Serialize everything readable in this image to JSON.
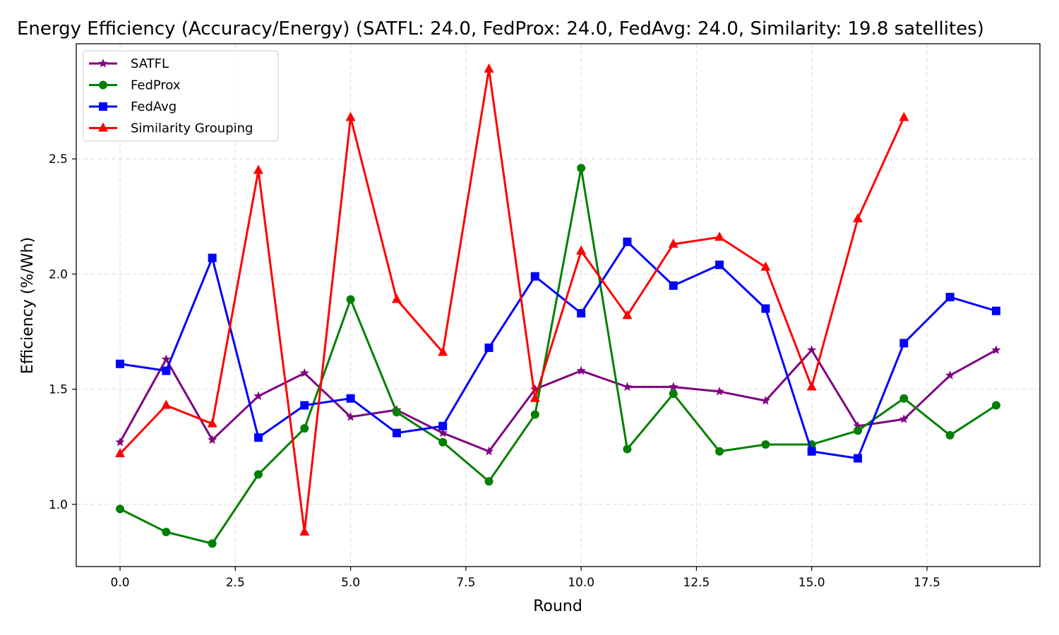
{
  "chart_data": {
    "type": "line",
    "title": "Energy Efficiency (Accuracy/Energy) (SATFL: 24.0, FedProx: 24.0, FedAvg: 24.0, Similarity: 19.8 satellites)",
    "xlabel": "Round",
    "ylabel": "Efficiency (%/Wh)",
    "xlim": [
      -0.95,
      19.95
    ],
    "ylim": [
      0.73,
      3.0
    ],
    "xticks": [
      "0.0",
      "2.5",
      "5.0",
      "7.5",
      "10.0",
      "12.5",
      "15.0",
      "17.5"
    ],
    "xtick_values": [
      0,
      2.5,
      5,
      7.5,
      10,
      12.5,
      15,
      17.5
    ],
    "yticks": [
      "1.0",
      "1.5",
      "2.0",
      "2.5"
    ],
    "ytick_values": [
      1.0,
      1.5,
      2.0,
      2.5
    ],
    "grid": true,
    "legend_position": "upper-left",
    "series": [
      {
        "name": "SATFL",
        "color": "#800080",
        "marker": "star",
        "x": [
          0,
          1,
          2,
          3,
          4,
          5,
          6,
          7,
          8,
          9,
          10,
          11,
          12,
          13,
          14,
          15,
          16,
          17,
          18,
          19
        ],
        "values": [
          1.27,
          1.63,
          1.28,
          1.47,
          1.57,
          1.38,
          1.41,
          1.31,
          1.23,
          1.5,
          1.58,
          1.51,
          1.51,
          1.49,
          1.45,
          1.67,
          1.34,
          1.37,
          1.56,
          1.67
        ]
      },
      {
        "name": "FedProx",
        "color": "#008000",
        "marker": "circle",
        "x": [
          0,
          1,
          2,
          3,
          4,
          5,
          6,
          7,
          8,
          9,
          10,
          11,
          12,
          13,
          14,
          15,
          16,
          17,
          18,
          19
        ],
        "values": [
          0.98,
          0.88,
          0.83,
          1.13,
          1.33,
          1.89,
          1.4,
          1.27,
          1.1,
          1.39,
          2.46,
          1.24,
          1.48,
          1.23,
          1.26,
          1.26,
          1.32,
          1.46,
          1.3,
          1.43
        ]
      },
      {
        "name": "FedAvg",
        "color": "#0000ff",
        "marker": "square",
        "x": [
          0,
          1,
          2,
          3,
          4,
          5,
          6,
          7,
          8,
          9,
          10,
          11,
          12,
          13,
          14,
          15,
          16,
          17,
          18,
          19
        ],
        "values": [
          1.61,
          1.58,
          2.07,
          1.29,
          1.43,
          1.46,
          1.31,
          1.34,
          1.68,
          1.99,
          1.83,
          2.14,
          1.95,
          2.04,
          1.85,
          1.23,
          1.2,
          1.7,
          1.9,
          1.84
        ]
      },
      {
        "name": "Similarity Grouping",
        "color": "#ff0000",
        "marker": "triangle",
        "x": [
          0,
          1,
          2,
          3,
          4,
          5,
          6,
          7,
          8,
          9,
          10,
          11,
          12,
          13,
          14,
          15,
          16,
          17
        ],
        "values": [
          1.22,
          1.43,
          1.35,
          2.45,
          0.88,
          2.68,
          1.89,
          1.66,
          2.89,
          1.46,
          2.1,
          1.82,
          2.13,
          2.16,
          2.03,
          1.51,
          2.24,
          2.68
        ]
      }
    ]
  }
}
